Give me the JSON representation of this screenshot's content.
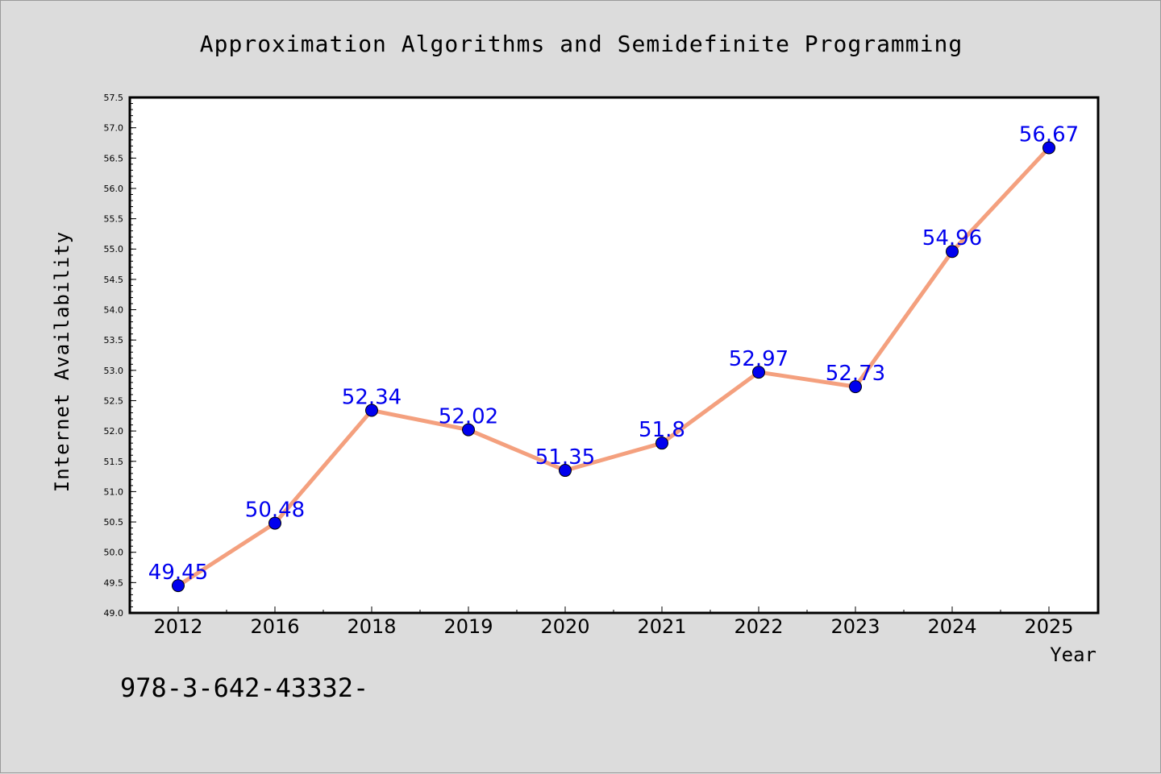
{
  "chart_data": {
    "type": "line",
    "title": "Approximation Algorithms and Semidefinite Programming",
    "xlabel": "Year",
    "ylabel": "Internet Availability",
    "categories": [
      "2012",
      "2016",
      "2018",
      "2019",
      "2020",
      "2021",
      "2022",
      "2023",
      "2024",
      "2025"
    ],
    "series": [
      {
        "values": [
          49.45,
          50.48,
          52.34,
          52.02,
          51.35,
          51.8,
          52.97,
          52.73,
          54.96,
          56.67
        ],
        "point_labels": [
          "49.45",
          "50.48",
          "52.34",
          "52.02",
          "51.35",
          "51.8",
          "52.97",
          "52.73",
          "54.96",
          "56.67"
        ],
        "line_color": "#f4a07e",
        "marker_color": "#0000ee",
        "label_color": "#0000ee"
      }
    ],
    "ylim": [
      49.0,
      57.5
    ],
    "yticks": [
      "49.0",
      "49.5",
      "50.0",
      "50.5",
      "51.0",
      "51.5",
      "52.0",
      "52.5",
      "53.0",
      "53.5",
      "54.0",
      "54.5",
      "55.0",
      "55.5",
      "56.0",
      "56.5",
      "57.0",
      "57.5"
    ],
    "grid": false,
    "legend": "none",
    "annotation": "978-3-642-43332-",
    "background_color": "#dcdcdc",
    "plot_background_color": "#ffffff"
  }
}
